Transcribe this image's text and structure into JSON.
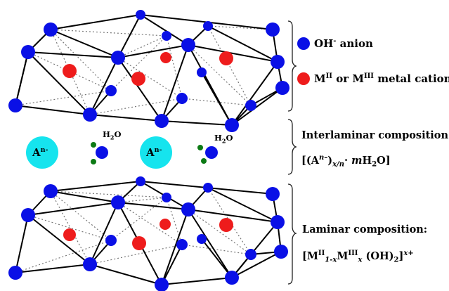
{
  "legend": {
    "hydroxide": {
      "text": "OH",
      "sup": "-",
      "rest": " anion",
      "color": "#0a10e6"
    },
    "metal": {
      "m1": "M",
      "m1_sup": "II",
      "mid": " or ",
      "m2": "M",
      "m2_sup": "III",
      "rest": " metal cation",
      "color": "#ee1c1c"
    }
  },
  "interlaminar": {
    "heading": "Interlaminar composition:",
    "formula": {
      "open": "[(A",
      "sup1": "n–",
      "close": ")",
      "sub1": "x/n",
      "dot": "· ",
      "m": "m",
      "tail": "H",
      "sub2": "2",
      "end": "O]"
    }
  },
  "laminar": {
    "heading": "Laminar composition:",
    "formula": {
      "open": "[M",
      "sup1": "II",
      "sub1": "1-x",
      "m": "M",
      "sup2": "III",
      "sub2": "x",
      "oh": " (OH)",
      "sub3": "2",
      "close": "]",
      "sup3": "x+"
    }
  },
  "interlayer": {
    "anion_label": "A",
    "anion_sup": "n-",
    "water_label": "H",
    "water_sub": "2",
    "water_end": "O",
    "anion_color": "#16e4ee",
    "water_h_color": "#0c7a14"
  }
}
